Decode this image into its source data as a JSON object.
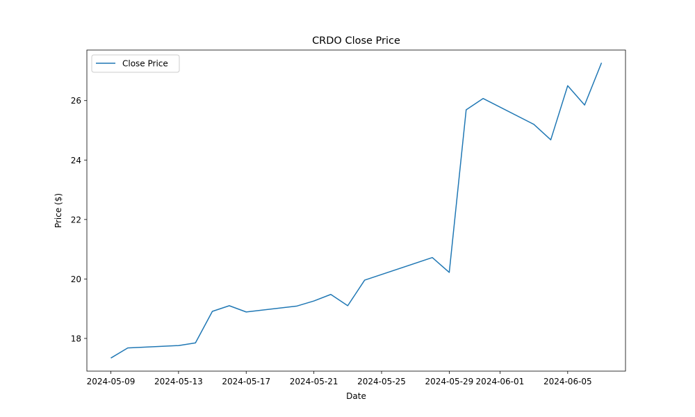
{
  "chart_data": {
    "type": "line",
    "title": "CRDO Close Price",
    "xlabel": "Date",
    "ylabel": "Price ($)",
    "grid": false,
    "legend_position": "top-left",
    "xlim": [
      "2024-05-07T14:00",
      "2024-06-08T10:00"
    ],
    "ylim": [
      16.9,
      27.7
    ],
    "xticks": [
      "2024-05-09",
      "2024-05-13",
      "2024-05-17",
      "2024-05-21",
      "2024-05-25",
      "2024-05-29",
      "2024-06-01",
      "2024-06-05"
    ],
    "yticks": [
      18,
      20,
      22,
      24,
      26
    ],
    "series": [
      {
        "name": "Close Price",
        "color": "#1f77b4",
        "x": [
          "2024-05-09",
          "2024-05-10",
          "2024-05-13",
          "2024-05-14",
          "2024-05-15",
          "2024-05-16",
          "2024-05-17",
          "2024-05-20",
          "2024-05-21",
          "2024-05-22",
          "2024-05-23",
          "2024-05-24",
          "2024-05-28",
          "2024-05-29",
          "2024-05-30",
          "2024-05-31",
          "2024-06-03",
          "2024-06-04",
          "2024-06-05",
          "2024-06-06",
          "2024-06-07"
        ],
        "values": [
          17.34,
          17.68,
          17.76,
          17.85,
          18.91,
          19.1,
          18.89,
          19.09,
          19.26,
          19.48,
          19.1,
          19.96,
          20.72,
          20.22,
          25.69,
          26.07,
          25.2,
          24.68,
          26.5,
          25.85,
          27.27
        ]
      }
    ]
  }
}
